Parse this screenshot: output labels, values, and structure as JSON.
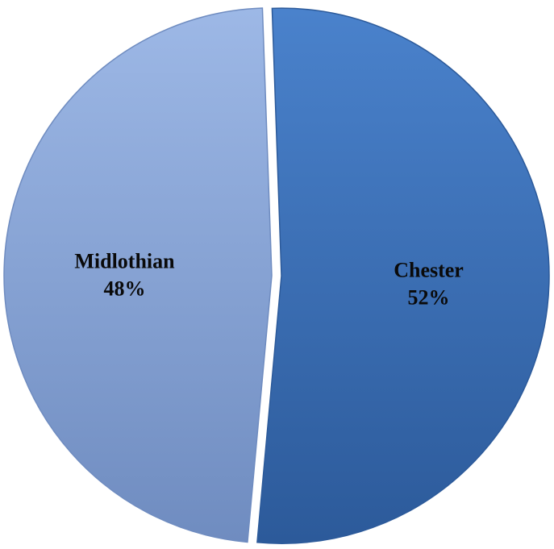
{
  "chart_data": {
    "type": "pie",
    "title": "",
    "legend": "none",
    "slices": [
      {
        "name": "Chester",
        "value": 52,
        "label": "52%",
        "color": "#3d74bf",
        "shade": "#2c5a9a"
      },
      {
        "name": "Midlothian",
        "value": 48,
        "label": "48%",
        "color": "#93afe0",
        "shade": "#6f8cc0"
      }
    ]
  }
}
